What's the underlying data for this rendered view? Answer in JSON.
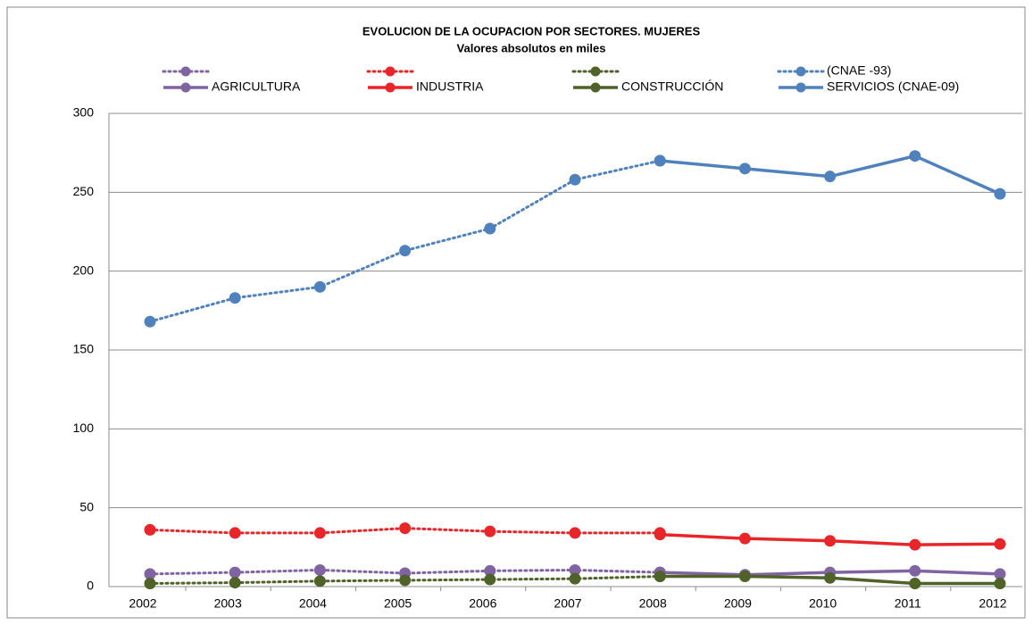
{
  "chart_data": {
    "type": "line",
    "title": "EVOLUCION DE LA OCUPACION POR SECTORES.  MUJERES",
    "subtitle": "Valores absolutos en miles",
    "categories": [
      "2002",
      "2003",
      "2004",
      "2005",
      "2006",
      "2007",
      "2008",
      "2009",
      "2010",
      "2011",
      "2012"
    ],
    "ylim": [
      0,
      300
    ],
    "yticks": [
      0,
      50,
      100,
      150,
      200,
      250,
      300
    ],
    "grid": true,
    "legend": "top",
    "series": [
      {
        "color": "#8064a2",
        "style": "dotted",
        "values": [
          8,
          9,
          10.5,
          8.5,
          10,
          10.5,
          9,
          null,
          null,
          null,
          null
        ]
      },
      {
        "color": "#e8262a",
        "style": "dotted",
        "values": [
          36,
          34,
          34,
          37,
          35,
          34,
          34,
          null,
          null,
          null,
          null
        ]
      },
      {
        "color": "#4f6228",
        "style": "dotted",
        "values": [
          2,
          2.5,
          3.5,
          4,
          4.5,
          5,
          6.5,
          null,
          null,
          null,
          null
        ]
      },
      {
        "name": "(CNAE -93)",
        "color": "#4f81bd",
        "style": "dotted",
        "values": [
          168,
          183,
          190,
          213,
          227,
          258,
          270,
          null,
          null,
          null,
          null
        ]
      },
      {
        "name": "AGRICULTURA",
        "color": "#8064a2",
        "style": "solid",
        "values": [
          null,
          null,
          null,
          null,
          null,
          null,
          9,
          7.5,
          9,
          10,
          8
        ]
      },
      {
        "name": "INDUSTRIA",
        "color": "#e8262a",
        "style": "solid",
        "values": [
          null,
          null,
          null,
          null,
          null,
          null,
          33,
          30.5,
          29,
          26.5,
          27
        ]
      },
      {
        "name": "CONSTRUCCIÓN",
        "color": "#4f6228",
        "style": "solid",
        "values": [
          null,
          null,
          null,
          null,
          null,
          null,
          6.5,
          6.5,
          5.5,
          2,
          2
        ]
      },
      {
        "name": "SERVICIOS (CNAE-09)",
        "color": "#4f81bd",
        "style": "solid",
        "values": [
          null,
          null,
          null,
          null,
          null,
          null,
          270,
          265,
          260,
          273,
          249
        ]
      }
    ]
  }
}
